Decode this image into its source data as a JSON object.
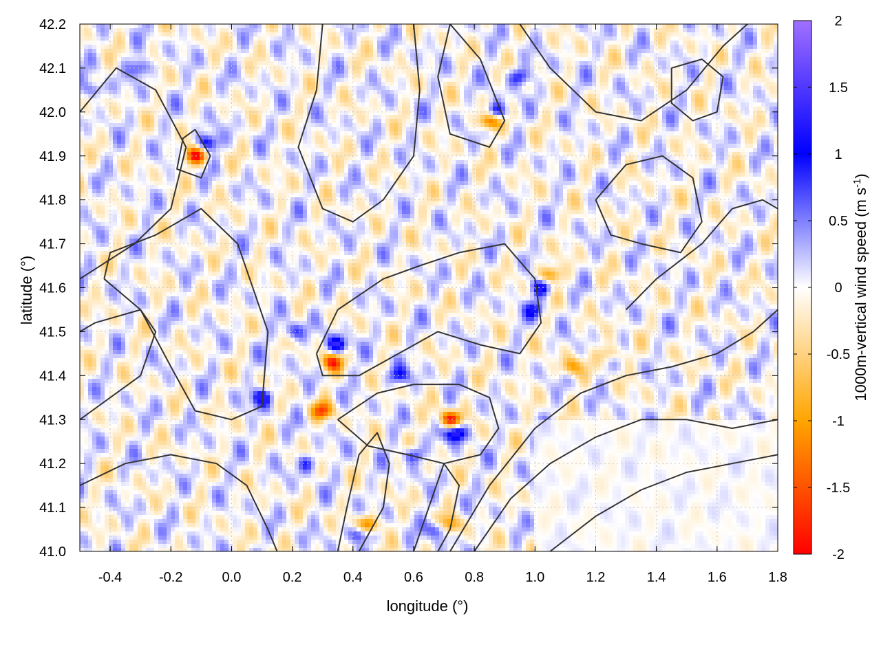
{
  "chart_data": {
    "type": "heatmap",
    "xlabel": "longitude (°)",
    "ylabel": "latitude (°)",
    "colorbar_label": "1000m-vertical wind speed (m s",
    "colorbar_label_sup": "-1",
    "colorbar_label_end": ")",
    "xlim": [
      -0.5,
      1.8
    ],
    "ylim": [
      41.0,
      42.2
    ],
    "zlim": [
      -2,
      2
    ],
    "x_ticks": [
      -0.4,
      -0.2,
      0.0,
      0.2,
      0.4,
      0.6,
      0.8,
      1.0,
      1.2,
      1.4,
      1.6,
      1.8
    ],
    "x_tick_labels": [
      "-0.4",
      "-0.2",
      "0.0",
      "0.2",
      "0.4",
      "0.6",
      "0.8",
      "1.0",
      "1.2",
      "1.4",
      "1.6",
      "1.8"
    ],
    "y_ticks": [
      41.0,
      41.1,
      41.2,
      41.3,
      41.4,
      41.5,
      41.6,
      41.7,
      41.8,
      41.9,
      42.0,
      42.1,
      42.2
    ],
    "y_tick_labels": [
      "41.0",
      "41.1",
      "41.2",
      "41.3",
      "41.4",
      "41.5",
      "41.6",
      "41.7",
      "41.8",
      "41.9",
      "42.0",
      "42.1",
      "42.2"
    ],
    "colorbar_ticks": [
      2,
      1.5,
      1,
      0.5,
      0,
      -0.5,
      -1,
      -1.5,
      -2
    ],
    "colorbar_tick_labels": [
      "2",
      "1.5",
      "1",
      "0.5",
      "0",
      "-0.5",
      "-1",
      "-1.5",
      "-2"
    ],
    "colormap": [
      "#ff0000",
      "#ffa500",
      "#ffffff",
      "#0000ff",
      "#a070ff"
    ],
    "grid": true,
    "contour_color": "#333333",
    "contours": [
      [
        [
          -0.5,
          42.0
        ],
        [
          -0.38,
          42.1
        ],
        [
          -0.25,
          42.05
        ],
        [
          -0.15,
          41.92
        ],
        [
          -0.2,
          41.78
        ],
        [
          -0.32,
          41.7
        ],
        [
          -0.5,
          41.62
        ]
      ],
      [
        [
          -0.42,
          41.62
        ],
        [
          -0.3,
          41.55
        ],
        [
          -0.2,
          41.42
        ],
        [
          -0.12,
          41.32
        ],
        [
          0.0,
          41.3
        ],
        [
          0.1,
          41.33
        ],
        [
          0.12,
          41.5
        ],
        [
          0.02,
          41.7
        ],
        [
          -0.1,
          41.78
        ],
        [
          -0.25,
          41.72
        ],
        [
          -0.4,
          41.68
        ],
        [
          -0.42,
          41.62
        ]
      ],
      [
        [
          -0.12,
          41.96
        ],
        [
          -0.07,
          41.9
        ],
        [
          -0.1,
          41.85
        ],
        [
          -0.18,
          41.87
        ],
        [
          -0.16,
          41.94
        ],
        [
          -0.12,
          41.96
        ]
      ],
      [
        [
          0.3,
          42.2
        ],
        [
          0.28,
          42.05
        ],
        [
          0.22,
          41.92
        ],
        [
          0.3,
          41.78
        ],
        [
          0.4,
          41.75
        ],
        [
          0.5,
          41.8
        ],
        [
          0.6,
          41.9
        ],
        [
          0.62,
          42.05
        ],
        [
          0.6,
          42.2
        ]
      ],
      [
        [
          0.72,
          42.2
        ],
        [
          0.82,
          42.12
        ],
        [
          0.9,
          41.98
        ],
        [
          0.85,
          41.92
        ],
        [
          0.72,
          41.95
        ],
        [
          0.68,
          42.08
        ],
        [
          0.72,
          42.2
        ]
      ],
      [
        [
          0.95,
          42.2
        ],
        [
          1.05,
          42.1
        ],
        [
          1.2,
          42.0
        ],
        [
          1.35,
          41.98
        ],
        [
          1.5,
          42.05
        ],
        [
          1.62,
          42.15
        ],
        [
          1.7,
          42.2
        ]
      ],
      [
        [
          0.28,
          41.45
        ],
        [
          0.35,
          41.55
        ],
        [
          0.5,
          41.62
        ],
        [
          0.62,
          41.65
        ],
        [
          0.75,
          41.68
        ],
        [
          0.9,
          41.7
        ],
        [
          1.0,
          41.62
        ],
        [
          1.02,
          41.52
        ],
        [
          0.95,
          41.45
        ],
        [
          0.82,
          41.47
        ],
        [
          0.68,
          41.5
        ],
        [
          0.55,
          41.45
        ],
        [
          0.42,
          41.4
        ],
        [
          0.3,
          41.4
        ],
        [
          0.28,
          41.45
        ]
      ],
      [
        [
          0.35,
          41.3
        ],
        [
          0.48,
          41.36
        ],
        [
          0.6,
          41.38
        ],
        [
          0.75,
          41.38
        ],
        [
          0.85,
          41.35
        ],
        [
          0.88,
          41.28
        ],
        [
          0.82,
          41.22
        ],
        [
          0.7,
          41.2
        ],
        [
          0.58,
          41.22
        ],
        [
          0.45,
          41.24
        ],
        [
          0.35,
          41.3
        ]
      ],
      [
        [
          0.8,
          41.0
        ],
        [
          0.92,
          41.12
        ],
        [
          1.05,
          41.2
        ],
        [
          1.2,
          41.26
        ],
        [
          1.35,
          41.3
        ],
        [
          1.5,
          41.3
        ],
        [
          1.65,
          41.28
        ],
        [
          1.8,
          41.3
        ]
      ],
      [
        [
          0.72,
          41.0
        ],
        [
          0.85,
          41.15
        ],
        [
          1.0,
          41.28
        ],
        [
          1.15,
          41.36
        ],
        [
          1.3,
          41.4
        ],
        [
          1.45,
          41.42
        ],
        [
          1.6,
          41.45
        ],
        [
          1.72,
          41.5
        ],
        [
          1.8,
          41.55
        ]
      ],
      [
        [
          1.05,
          41.0
        ],
        [
          1.2,
          41.08
        ],
        [
          1.35,
          41.14
        ],
        [
          1.5,
          41.18
        ],
        [
          1.65,
          41.2
        ],
        [
          1.8,
          41.22
        ]
      ],
      [
        [
          0.42,
          41.0
        ],
        [
          0.5,
          41.1
        ],
        [
          0.52,
          41.2
        ],
        [
          0.48,
          41.27
        ],
        [
          0.42,
          41.22
        ],
        [
          0.38,
          41.1
        ],
        [
          0.35,
          41.0
        ]
      ],
      [
        [
          0.6,
          41.0
        ],
        [
          0.65,
          41.1
        ],
        [
          0.7,
          41.2
        ],
        [
          0.75,
          41.15
        ],
        [
          0.72,
          41.05
        ],
        [
          0.68,
          41.0
        ]
      ],
      [
        [
          1.3,
          41.55
        ],
        [
          1.4,
          41.62
        ],
        [
          1.55,
          41.7
        ],
        [
          1.65,
          41.78
        ],
        [
          1.75,
          41.8
        ],
        [
          1.8,
          41.78
        ]
      ],
      [
        [
          1.2,
          41.8
        ],
        [
          1.3,
          41.88
        ],
        [
          1.42,
          41.9
        ],
        [
          1.52,
          41.85
        ],
        [
          1.55,
          41.75
        ],
        [
          1.48,
          41.68
        ],
        [
          1.35,
          41.7
        ],
        [
          1.25,
          41.72
        ],
        [
          1.2,
          41.8
        ]
      ],
      [
        [
          -0.5,
          41.15
        ],
        [
          -0.35,
          41.2
        ],
        [
          -0.2,
          41.22
        ],
        [
          -0.05,
          41.2
        ],
        [
          0.05,
          41.15
        ],
        [
          0.12,
          41.05
        ],
        [
          0.15,
          41.0
        ]
      ],
      [
        [
          -0.5,
          41.3
        ],
        [
          -0.4,
          41.35
        ],
        [
          -0.3,
          41.4
        ],
        [
          -0.25,
          41.5
        ],
        [
          -0.3,
          41.55
        ],
        [
          -0.45,
          41.52
        ],
        [
          -0.5,
          41.5
        ]
      ],
      [
        [
          1.45,
          42.1
        ],
        [
          1.55,
          42.12
        ],
        [
          1.62,
          42.08
        ],
        [
          1.6,
          42.0
        ],
        [
          1.52,
          41.98
        ],
        [
          1.45,
          42.02
        ],
        [
          1.45,
          42.1
        ]
      ]
    ],
    "features": [
      {
        "x": -0.12,
        "y": 41.9,
        "a": -1.9
      },
      {
        "x": -0.08,
        "y": 41.93,
        "a": 1.2
      },
      {
        "x": 0.33,
        "y": 41.43,
        "a": -1.6
      },
      {
        "x": 0.35,
        "y": 41.47,
        "a": 1.2
      },
      {
        "x": 0.3,
        "y": 41.32,
        "a": -1.4
      },
      {
        "x": 0.72,
        "y": 41.3,
        "a": -1.8
      },
      {
        "x": 0.74,
        "y": 41.27,
        "a": 1.5
      },
      {
        "x": 0.85,
        "y": 41.98,
        "a": -1.5
      },
      {
        "x": 0.87,
        "y": 42.0,
        "a": 1.2
      },
      {
        "x": 1.05,
        "y": 41.63,
        "a": -1.2
      },
      {
        "x": 1.02,
        "y": 41.6,
        "a": 1.1
      },
      {
        "x": 0.45,
        "y": 41.06,
        "a": -1.4
      },
      {
        "x": 0.42,
        "y": 41.04,
        "a": 1.1
      },
      {
        "x": 0.72,
        "y": 41.06,
        "a": -1.2
      },
      {
        "x": 0.68,
        "y": 41.05,
        "a": 1.0
      },
      {
        "x": 0.1,
        "y": 41.35,
        "a": 1.1
      },
      {
        "x": 0.2,
        "y": 41.5,
        "a": 0.9
      },
      {
        "x": -0.45,
        "y": 42.05,
        "a": 0.8
      },
      {
        "x": -0.3,
        "y": 42.1,
        "a": 0.9
      },
      {
        "x": 0.55,
        "y": 41.4,
        "a": 0.9
      },
      {
        "x": 1.12,
        "y": 41.42,
        "a": -1.0
      },
      {
        "x": 1.25,
        "y": 41.45,
        "a": -0.8
      },
      {
        "x": 0.95,
        "y": 42.08,
        "a": 1.0
      },
      {
        "x": 1.0,
        "y": 41.55,
        "a": 0.8
      },
      {
        "x": 0.6,
        "y": 41.22,
        "a": 0.9
      },
      {
        "x": 0.25,
        "y": 41.2,
        "a": 0.8
      }
    ]
  }
}
